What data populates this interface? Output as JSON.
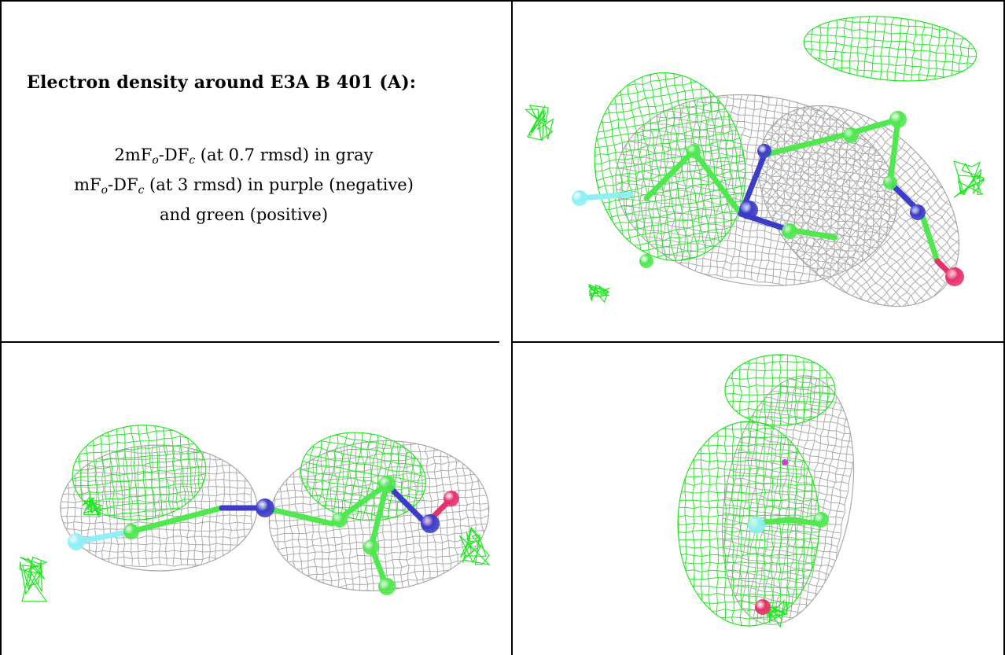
{
  "caption": {
    "title": "Electron density around E3A B 401 (A):",
    "line1_pre": "2mF",
    "line1_sub1": "o",
    "line1_mid": "-DF",
    "line1_sub2": "c",
    "line1_post": " (at 0.7 rmsd) in gray",
    "line2_pre": "mF",
    "line2_sub1": "o",
    "line2_mid": "-DF",
    "line2_sub2": "c",
    "line2_post": " (at 3 rmsd) in purple (negative)",
    "line3": "and green (positive)"
  },
  "colors": {
    "mesh_gray": "#a8a8a8",
    "mesh_green": "#22e622",
    "carbon": "#4fe84f",
    "nitrogen": "#3c3cc8",
    "oxygen": "#e8306a",
    "fluorine": "#8ef0f4",
    "negative": "#d040d0"
  },
  "views": [
    "view-top-right",
    "view-bottom-left",
    "view-bottom-right"
  ]
}
